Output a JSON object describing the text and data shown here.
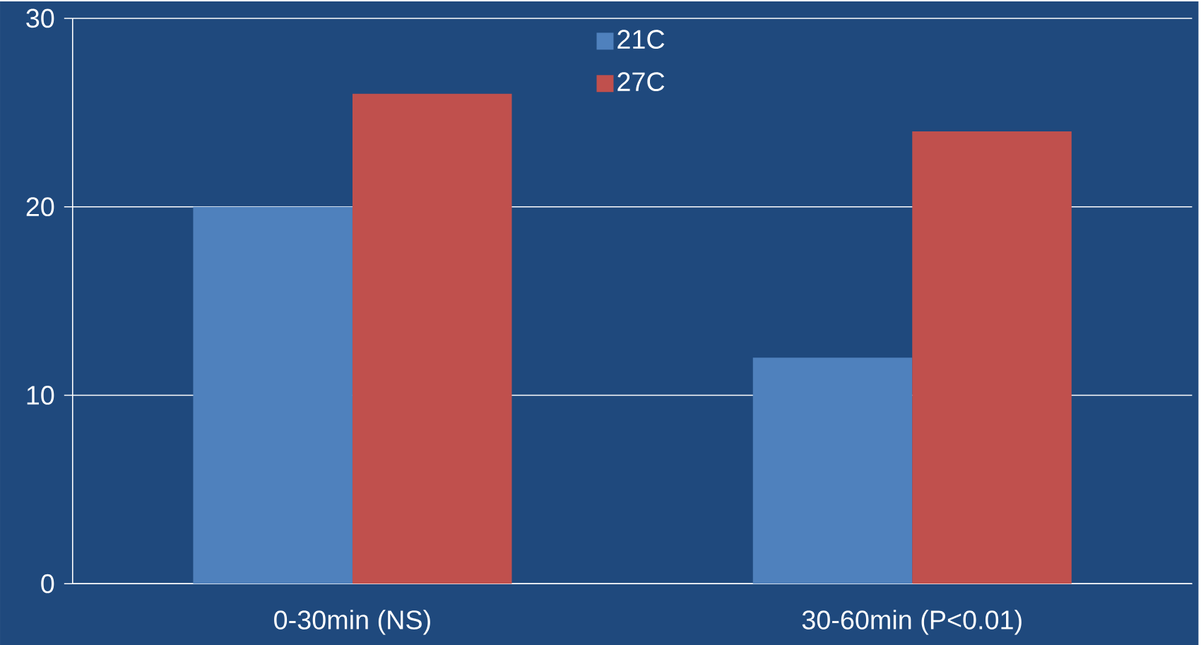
{
  "chart_data": {
    "type": "bar",
    "categories": [
      "0-30min (NS)",
      "30-60min (P<0.01)"
    ],
    "series": [
      {
        "name": "21C",
        "color": "#4f81bd",
        "values": [
          20,
          12
        ]
      },
      {
        "name": "27C",
        "color": "#c0504d",
        "values": [
          26,
          24
        ]
      }
    ],
    "ylim": [
      0,
      30
    ],
    "yticks": [
      0,
      10,
      20,
      30
    ],
    "grid": "y",
    "legend": "top"
  }
}
